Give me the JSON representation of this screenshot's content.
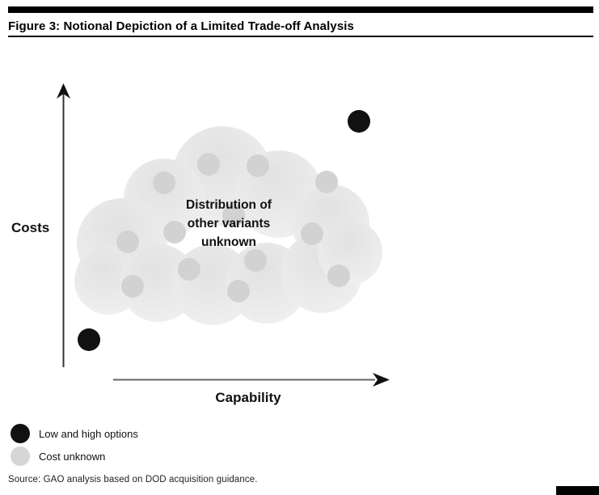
{
  "figure": {
    "title": "Figure 3: Notional Depiction of a Limited Trade-off Analysis",
    "source_note": "Source: GAO analysis based on DOD acquisition guidance."
  },
  "chart_data": {
    "type": "scatter",
    "title": "Figure 3: Notional Depiction of a Limited Trade-off Analysis",
    "xlabel": "Capability",
    "ylabel": "Costs",
    "axes_numeric": false,
    "grid": false,
    "annotation": "Distribution of\nother variants\nunknown",
    "legend_position": "below-chart-left",
    "series": [
      {
        "name": "Low and high options",
        "color": "#111111",
        "marker": "filled-circle",
        "points": [
          {
            "x": 0.08,
            "y": 0.137,
            "note": "low option"
          },
          {
            "x": 0.91,
            "y": 0.893,
            "note": "high option"
          }
        ]
      },
      {
        "name": "Cost unknown",
        "color": "#d2d2d2",
        "marker": "filled-circle",
        "points": [
          {
            "x": 0.311,
            "y": 0.681
          },
          {
            "x": 0.448,
            "y": 0.745
          },
          {
            "x": 0.599,
            "y": 0.739
          },
          {
            "x": 0.811,
            "y": 0.683
          },
          {
            "x": 0.525,
            "y": 0.569
          },
          {
            "x": 0.343,
            "y": 0.51
          },
          {
            "x": 0.766,
            "y": 0.504
          },
          {
            "x": 0.199,
            "y": 0.476
          },
          {
            "x": 0.592,
            "y": 0.412
          },
          {
            "x": 0.388,
            "y": 0.381
          },
          {
            "x": 0.848,
            "y": 0.359
          },
          {
            "x": 0.54,
            "y": 0.305
          },
          {
            "x": 0.214,
            "y": 0.322
          }
        ]
      }
    ]
  },
  "legend": {
    "items": [
      {
        "label": "Low and high options",
        "color": "#111111"
      },
      {
        "label": "Cost unknown",
        "color": "#d6d6d6"
      }
    ]
  }
}
